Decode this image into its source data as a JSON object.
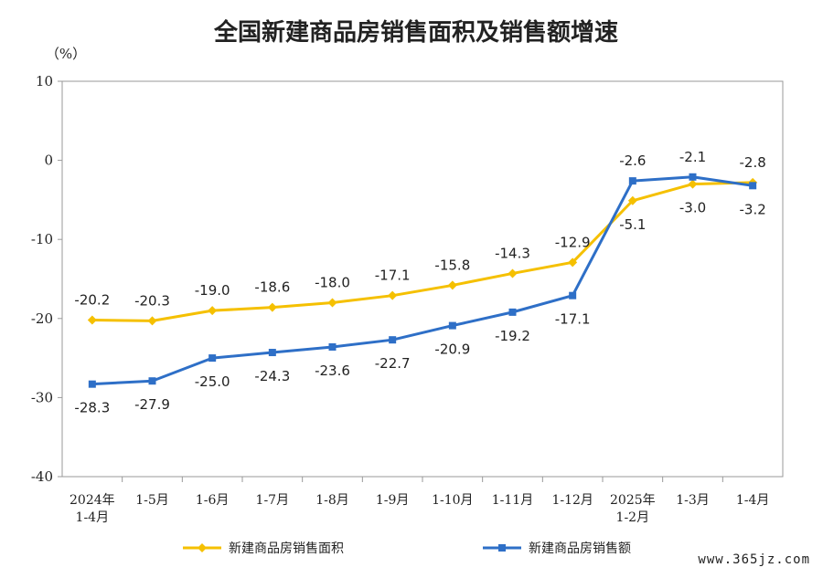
{
  "chart_data": {
    "type": "line",
    "title": "全国新建商品房销售面积及销售额增速",
    "ylabel": "（%）",
    "xlabel": "",
    "ylim": [
      -40,
      10
    ],
    "yticks": [
      10,
      0,
      -10,
      -20,
      -30,
      -40
    ],
    "grid": false,
    "legend_position": "bottom",
    "categories": [
      [
        "2024年",
        "1-4月"
      ],
      [
        "1-5月"
      ],
      [
        "1-6月"
      ],
      [
        "1-7月"
      ],
      [
        "1-8月"
      ],
      [
        "1-9月"
      ],
      [
        "1-10月"
      ],
      [
        "1-11月"
      ],
      [
        "1-12月"
      ],
      [
        "2025年",
        "1-2月"
      ],
      [
        "1-3月"
      ],
      [
        "1-4月"
      ]
    ],
    "series": [
      {
        "name": "新建商品房销售面积",
        "color": "#F5C000",
        "marker": "diamond",
        "values": [
          -20.2,
          -20.3,
          -19.0,
          -18.6,
          -18.0,
          -17.1,
          -15.8,
          -14.3,
          -12.9,
          -5.1,
          -3.0,
          -2.8
        ],
        "labels": [
          "-20.2",
          "-20.3",
          "-19.0",
          "-18.6",
          "-18.0",
          "-17.1",
          "-15.8",
          "-14.3",
          "-12.9",
          "-5.1",
          "-3.0",
          "-2.8"
        ]
      },
      {
        "name": "新建商品房销售额",
        "color": "#2E6FC7",
        "marker": "square",
        "values": [
          -28.3,
          -27.9,
          -25.0,
          -24.3,
          -23.6,
          -22.7,
          -20.9,
          -19.2,
          -17.1,
          -2.6,
          -2.1,
          -3.2
        ],
        "labels": [
          "-28.3",
          "-27.9",
          "-25.0",
          "-24.3",
          "-23.6",
          "-22.7",
          "-20.9",
          "-19.2",
          "-17.1",
          "-2.6",
          "-2.1",
          "-3.2"
        ]
      }
    ]
  },
  "watermark": "www.365jz.com"
}
